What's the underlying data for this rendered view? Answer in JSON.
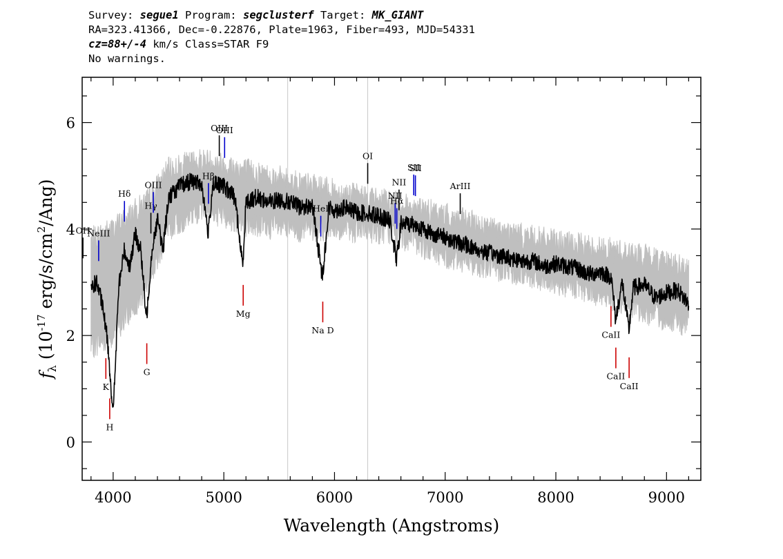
{
  "header": {
    "line1": {
      "survey_label": "Survey: ",
      "survey": "segue1",
      "program_label": " Program: ",
      "program": "segclusterf",
      "target_label": " Target: ",
      "target": "MK_GIANT"
    },
    "line2": "RA=323.41366, Dec=-0.22876, Plate=1963, Fiber=493, MJD=54331",
    "line3": {
      "cz": "cz=88+/-4",
      "rest": " km/s Class=STAR F9"
    },
    "line4": "No warnings."
  },
  "chart_data": {
    "type": "line",
    "xlabel": "Wavelength (Angstroms)",
    "ylabel": "f_λ (10^-17 erg/s/cm^2/Ang)",
    "xlim": [
      3720,
      9310
    ],
    "ylim": [
      -0.72,
      6.85
    ],
    "x_ticks": [
      4000,
      5000,
      6000,
      7000,
      8000,
      9000
    ],
    "y_ticks": [
      0,
      2,
      4,
      6
    ],
    "grid": false,
    "colors": {
      "flux": "#000000",
      "noise": "#bfbfbf",
      "emission_lines": "#0000cc",
      "absorption_lines": "#cc0000",
      "marker_lines": "#000000"
    },
    "series": [
      {
        "role": "smoothed flux",
        "x": [
          3800,
          3850,
          3900,
          3950,
          4000,
          4050,
          4100,
          4150,
          4200,
          4250,
          4300,
          4350,
          4400,
          4450,
          4500,
          4600,
          4700,
          4800,
          4860,
          4900,
          5000,
          5100,
          5170,
          5200,
          5300,
          5400,
          5500,
          5600,
          5700,
          5800,
          5890,
          5950,
          6000,
          6100,
          6200,
          6300,
          6400,
          6500,
          6560,
          6600,
          6700,
          6800,
          6900,
          7000,
          7100,
          7200,
          7300,
          7400,
          7500,
          7600,
          7700,
          7800,
          7900,
          8000,
          8100,
          8200,
          8300,
          8400,
          8500,
          8540,
          8600,
          8660,
          8700,
          8800,
          8900,
          9000,
          9100,
          9200
        ],
        "y": [
          2.9,
          3.0,
          2.6,
          1.9,
          0.5,
          2.9,
          3.6,
          3.3,
          3.9,
          3.6,
          2.3,
          3.6,
          4.2,
          3.6,
          4.6,
          4.8,
          4.9,
          4.85,
          3.9,
          4.85,
          4.8,
          4.6,
          3.3,
          4.5,
          4.6,
          4.5,
          4.55,
          4.5,
          4.4,
          4.45,
          3.1,
          4.4,
          4.35,
          4.4,
          4.3,
          4.3,
          4.25,
          4.15,
          3.4,
          4.1,
          4.1,
          4.0,
          3.9,
          3.85,
          3.75,
          3.7,
          3.6,
          3.55,
          3.5,
          3.45,
          3.4,
          3.4,
          3.3,
          3.35,
          3.3,
          3.25,
          3.15,
          3.2,
          3.1,
          2.3,
          3.0,
          2.1,
          2.9,
          2.95,
          2.7,
          2.8,
          2.85,
          2.6
        ]
      },
      {
        "role": "noise envelope",
        "x": [
          3800,
          4000,
          4300,
          4500,
          4800,
          5200,
          5600,
          6000,
          6500,
          7000,
          7500,
          8000,
          8500,
          9000,
          9200
        ],
        "upper": [
          3.8,
          4.0,
          4.5,
          5.1,
          5.3,
          5.1,
          4.9,
          4.7,
          4.5,
          4.25,
          3.95,
          3.75,
          3.6,
          3.4,
          3.2
        ],
        "lower": [
          1.8,
          2.0,
          2.9,
          4.0,
          4.4,
          4.1,
          4.0,
          4.0,
          3.95,
          3.5,
          3.25,
          3.0,
          2.7,
          2.3,
          2.2
        ]
      }
    ],
    "markers": [
      {
        "label": "OH",
        "x": 3727,
        "kind": "emission"
      },
      {
        "label": "NeIII",
        "x": 3869,
        "kind": "emission"
      },
      {
        "label": "Hδ",
        "x": 4102,
        "kind": "emission"
      },
      {
        "label": "Hγ",
        "x": 4341,
        "kind": "emission"
      },
      {
        "label": "OIII",
        "x": 4363,
        "kind": "emission"
      },
      {
        "label": "Hβ",
        "x": 4861,
        "kind": "emission"
      },
      {
        "label": "OIII",
        "x": 4959,
        "kind": "emission"
      },
      {
        "label": "OIII",
        "x": 5007,
        "kind": "emission"
      },
      {
        "label": "HeI",
        "x": 5876,
        "kind": "emission"
      },
      {
        "label": "OI",
        "x": 6300,
        "kind": "emission"
      },
      {
        "label": "NII",
        "x": 6548,
        "kind": "emission"
      },
      {
        "label": "Hα",
        "x": 6563,
        "kind": "emission"
      },
      {
        "label": "NII",
        "x": 6583,
        "kind": "emission"
      },
      {
        "label": "SII",
        "x": 6716,
        "kind": "emission"
      },
      {
        "label": "SII",
        "x": 6731,
        "kind": "emission"
      },
      {
        "label": "ArIII",
        "x": 7136,
        "kind": "emission"
      },
      {
        "label": "K",
        "x": 3934,
        "kind": "absorption"
      },
      {
        "label": "H",
        "x": 3969,
        "kind": "absorption"
      },
      {
        "label": "G",
        "x": 4304,
        "kind": "absorption"
      },
      {
        "label": "Mg",
        "x": 5175,
        "kind": "absorption"
      },
      {
        "label": "Na D",
        "x": 5894,
        "kind": "absorption"
      },
      {
        "label": "CaII",
        "x": 8498,
        "kind": "absorption"
      },
      {
        "label": "CaII",
        "x": 8542,
        "kind": "absorption"
      },
      {
        "label": "CaII",
        "x": 8662,
        "kind": "absorption"
      }
    ],
    "sky_lines": [
      5577,
      6300
    ]
  }
}
